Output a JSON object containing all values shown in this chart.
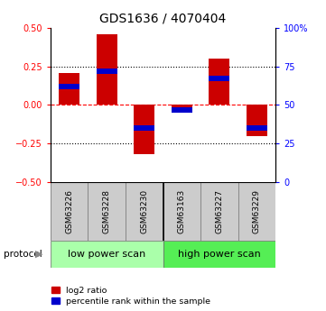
{
  "title": "GDS1636 / 4070404",
  "samples": [
    "GSM63226",
    "GSM63228",
    "GSM63230",
    "GSM63163",
    "GSM63227",
    "GSM63229"
  ],
  "log2_ratio": [
    0.21,
    0.46,
    -0.32,
    -0.05,
    0.3,
    -0.2
  ],
  "percentile_rank_raw": [
    62,
    72,
    35,
    47,
    67,
    35
  ],
  "bar_color_red": "#cc0000",
  "bar_color_blue": "#0000cc",
  "ylim": [
    -0.5,
    0.5
  ],
  "y2lim": [
    0,
    100
  ],
  "y_ticks": [
    -0.5,
    -0.25,
    0.0,
    0.25,
    0.5
  ],
  "y2_ticks": [
    0,
    25,
    50,
    75,
    100
  ],
  "protocol_labels": [
    "low power scan",
    "high power scan"
  ],
  "protocol_color_low": "#aaffaa",
  "protocol_color_high": "#55ee55",
  "sample_box_color": "#cccccc",
  "legend_red": "log2 ratio",
  "legend_blue": "percentile rank within the sample",
  "background_color": "#ffffff"
}
